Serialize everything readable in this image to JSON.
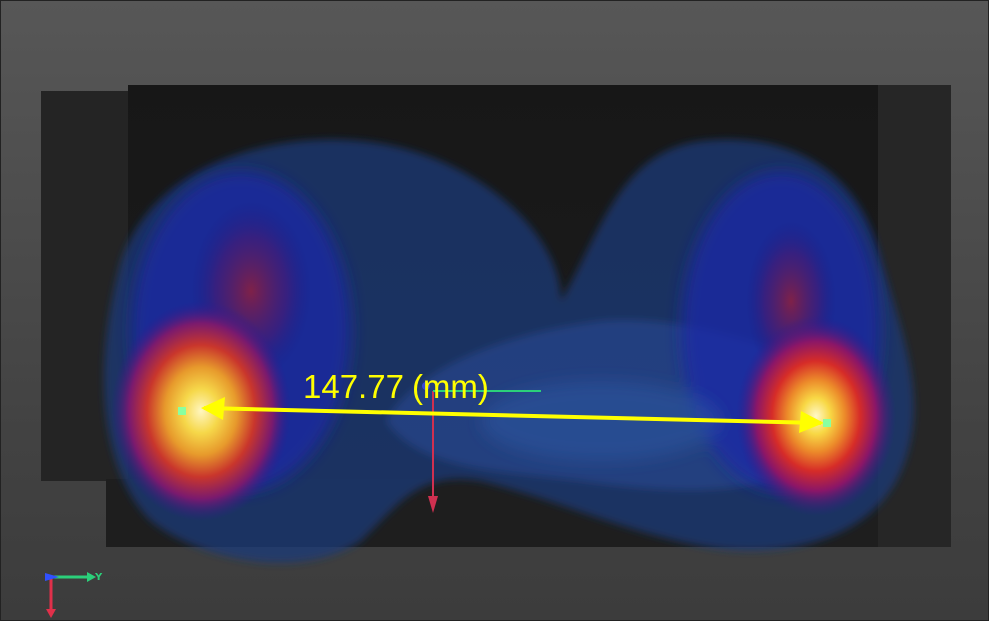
{
  "viewer": {
    "measurement": {
      "value": "147.77",
      "unit": "(mm)",
      "color": "#ffff00"
    },
    "axes": {
      "y_label": "Y",
      "y_color": "#2bd07a",
      "z_color": "#e0304a",
      "x_color": "#3050ff"
    },
    "markers": [
      "point-marker",
      "point-marker"
    ],
    "background": "#4a4a4a"
  }
}
